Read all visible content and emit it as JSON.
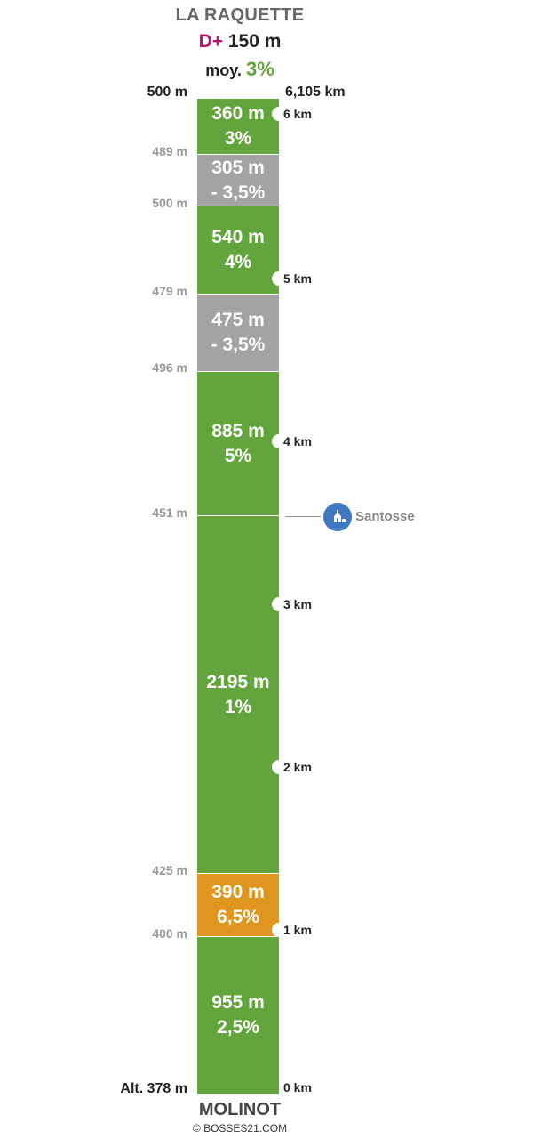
{
  "header": {
    "name": "LA RAQUETTE",
    "gain_prefix": "D+",
    "gain_value": "150 m",
    "avg_prefix": "moy.",
    "avg_value": "3%"
  },
  "top_labels": {
    "altitude": "500 m",
    "distance": "6,105 km"
  },
  "segments": [
    {
      "length": "360 m",
      "grade": "3%",
      "color": "#63a53c"
    },
    {
      "length": "305 m",
      "grade": "- 3,5%",
      "color": "#a3a3a3"
    },
    {
      "length": "540 m",
      "grade": "4%",
      "color": "#63a53c"
    },
    {
      "length": "475 m",
      "grade": "- 3,5%",
      "color": "#a3a3a3"
    },
    {
      "length": "885 m",
      "grade": "5%",
      "color": "#63a53c"
    },
    {
      "length": "2195 m",
      "grade": "1%",
      "color": "#63a53c"
    },
    {
      "length": "390 m",
      "grade": "6,5%",
      "color": "#e0961e"
    },
    {
      "length": "955 m",
      "grade": "2,5%",
      "color": "#63a53c"
    }
  ],
  "altitudes": [
    "489 m",
    "500 m",
    "479 m",
    "496 m",
    "451 m",
    "425 m",
    "400 m"
  ],
  "start_altitude": "Alt. 378 m",
  "km_markers": [
    "6 km",
    "5 km",
    "4 km",
    "3 km",
    "2 km",
    "1 km",
    "0 km"
  ],
  "poi": {
    "label": "Santosse",
    "icon": "church-icon"
  },
  "footer": {
    "name": "MOLINOT",
    "credit": "© BOSSES21.COM"
  }
}
